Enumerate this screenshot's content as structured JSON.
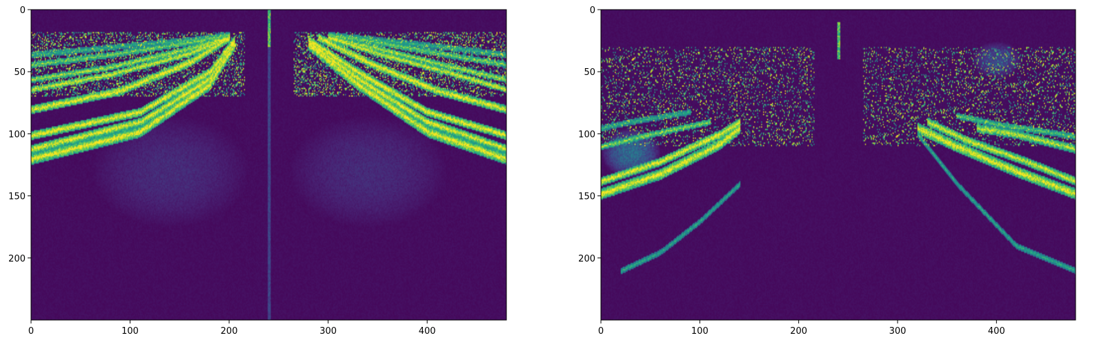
{
  "chart_data": [
    {
      "type": "heatmap",
      "colormap": "viridis",
      "xlim": [
        0,
        480
      ],
      "ylim": [
        250,
        0
      ],
      "xticks": [
        0,
        100,
        200,
        300,
        400
      ],
      "yticks": [
        0,
        50,
        100,
        150,
        200
      ],
      "xtick_labels": [
        "0",
        "100",
        "200",
        "300",
        "400"
      ],
      "ytick_labels": [
        "0",
        "50",
        "100",
        "150",
        "200"
      ],
      "vertical_line_x": 240,
      "vertical_line_y": [
        0,
        250
      ],
      "bands": [
        {
          "x": [
            0,
            110,
            180,
            205
          ],
          "y": [
            120,
            98,
            60,
            28
          ],
          "intensity": 1.0,
          "width": 4
        },
        {
          "x": [
            0,
            110,
            180,
            205
          ],
          "y": [
            112,
            90,
            55,
            26
          ],
          "intensity": 1.0,
          "width": 3
        },
        {
          "x": [
            0,
            110,
            180,
            205
          ],
          "y": [
            101,
            82,
            50,
            24
          ],
          "intensity": 1.0,
          "width": 3
        },
        {
          "x": [
            0,
            90,
            160,
            200
          ],
          "y": [
            80,
            65,
            42,
            22
          ],
          "intensity": 1.0,
          "width": 3
        },
        {
          "x": [
            0,
            80,
            160,
            200
          ],
          "y": [
            64,
            52,
            35,
            22
          ],
          "intensity": 0.95,
          "width": 2
        },
        {
          "x": [
            0,
            80,
            160,
            200
          ],
          "y": [
            56,
            46,
            31,
            22
          ],
          "intensity": 0.85,
          "width": 2
        },
        {
          "x": [
            0,
            80,
            160,
            200
          ],
          "y": [
            44,
            36,
            26,
            20
          ],
          "intensity": 0.75,
          "width": 2
        },
        {
          "x": [
            0,
            80,
            160,
            200
          ],
          "y": [
            36,
            30,
            24,
            20
          ],
          "intensity": 0.6,
          "width": 2
        },
        {
          "x": [
            280,
            330,
            400,
            480
          ],
          "y": [
            28,
            60,
            98,
            120
          ],
          "intensity": 1.0,
          "width": 4
        },
        {
          "x": [
            280,
            330,
            400,
            480
          ],
          "y": [
            26,
            55,
            90,
            112
          ],
          "intensity": 1.0,
          "width": 3
        },
        {
          "x": [
            280,
            330,
            400,
            480
          ],
          "y": [
            24,
            50,
            82,
            101
          ],
          "intensity": 1.0,
          "width": 3
        },
        {
          "x": [
            290,
            340,
            410,
            480
          ],
          "y": [
            22,
            42,
            65,
            80
          ],
          "intensity": 1.0,
          "width": 3
        },
        {
          "x": [
            300,
            350,
            420,
            480
          ],
          "y": [
            22,
            35,
            50,
            64
          ],
          "intensity": 0.95,
          "width": 2
        },
        {
          "x": [
            300,
            350,
            420,
            480
          ],
          "y": [
            22,
            31,
            45,
            56
          ],
          "intensity": 0.85,
          "width": 2
        },
        {
          "x": [
            300,
            350,
            420,
            480
          ],
          "y": [
            20,
            26,
            36,
            44
          ],
          "intensity": 0.75,
          "width": 2
        },
        {
          "x": [
            300,
            350,
            420,
            480
          ],
          "y": [
            20,
            24,
            30,
            36
          ],
          "intensity": 0.6,
          "width": 2
        }
      ],
      "speckle_region": {
        "y": [
          18,
          70
        ],
        "density": 0.28
      },
      "haze_blobs": [
        {
          "cx": 140,
          "cy": 130,
          "rx": 80,
          "ry": 45,
          "intensity": 0.1
        },
        {
          "cx": 340,
          "cy": 130,
          "rx": 80,
          "ry": 45,
          "intensity": 0.1
        }
      ]
    },
    {
      "type": "heatmap",
      "colormap": "viridis",
      "xlim": [
        0,
        480
      ],
      "ylim": [
        250,
        0
      ],
      "xticks": [
        0,
        100,
        200,
        300,
        400
      ],
      "yticks": [
        0,
        50,
        100,
        150,
        200
      ],
      "xtick_labels": [
        "0",
        "100",
        "200",
        "300",
        "400"
      ],
      "ytick_labels": [
        "0",
        "50",
        "100",
        "150",
        "200"
      ],
      "vertical_line_x": 240,
      "vertical_line_y": [
        10,
        40
      ],
      "bands": [
        {
          "x": [
            0,
            60,
            120,
            140
          ],
          "y": [
            148,
            132,
            108,
            95
          ],
          "intensity": 1.0,
          "width": 4
        },
        {
          "x": [
            0,
            60,
            120,
            140
          ],
          "y": [
            138,
            122,
            100,
            90
          ],
          "intensity": 1.0,
          "width": 3
        },
        {
          "x": [
            0,
            40,
            80,
            110
          ],
          "y": [
            110,
            102,
            95,
            90
          ],
          "intensity": 0.8,
          "width": 2
        },
        {
          "x": [
            0,
            30,
            60,
            90
          ],
          "y": [
            95,
            90,
            86,
            82
          ],
          "intensity": 0.6,
          "width": 2
        },
        {
          "x": [
            320,
            360,
            420,
            480
          ],
          "y": [
            95,
            110,
            130,
            148
          ],
          "intensity": 1.0,
          "width": 4
        },
        {
          "x": [
            330,
            370,
            430,
            480
          ],
          "y": [
            90,
            105,
            122,
            138
          ],
          "intensity": 0.95,
          "width": 3
        },
        {
          "x": [
            380,
            420,
            460,
            480
          ],
          "y": [
            95,
            100,
            108,
            112
          ],
          "intensity": 0.9,
          "width": 3
        },
        {
          "x": [
            360,
            400,
            450,
            480
          ],
          "y": [
            85,
            92,
            98,
            102
          ],
          "intensity": 0.7,
          "width": 2
        },
        {
          "x": [
            20,
            60,
            100,
            140
          ],
          "y": [
            210,
            195,
            170,
            140
          ],
          "intensity": 0.6,
          "width": 2
        },
        {
          "x": [
            320,
            360,
            420,
            480
          ],
          "y": [
            100,
            140,
            190,
            210
          ],
          "intensity": 0.6,
          "width": 2
        }
      ],
      "speckle_region": {
        "y": [
          30,
          110
        ],
        "density": 0.16
      },
      "haze_blobs": [
        {
          "cx": 30,
          "cy": 115,
          "rx": 30,
          "ry": 20,
          "intensity": 0.35
        },
        {
          "cx": 400,
          "cy": 40,
          "rx": 25,
          "ry": 15,
          "intensity": 0.2
        }
      ]
    }
  ]
}
